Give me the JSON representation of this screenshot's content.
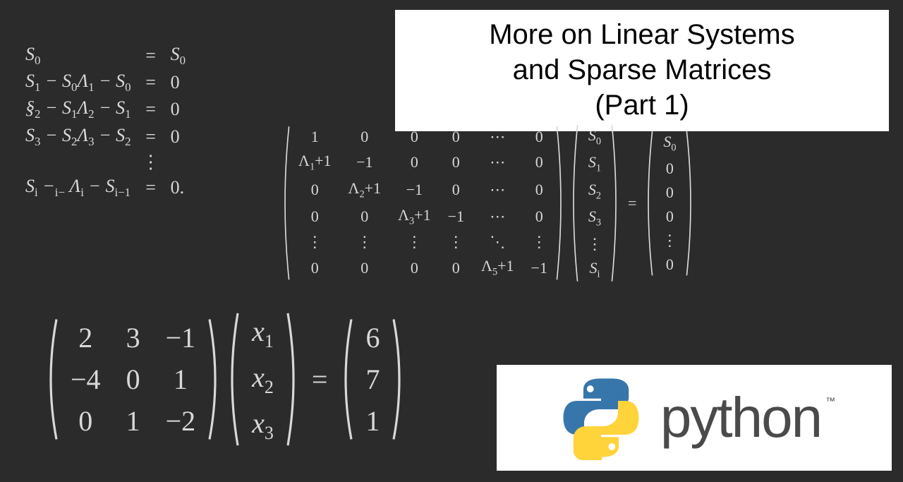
{
  "title": {
    "line1": "More on Linear Systems",
    "line2": "and Sparse Matrices",
    "line3": "(Part 1)",
    "bg": "#ffffff",
    "fg": "#000000",
    "fontsize": 40
  },
  "colors": {
    "page_bg": "#2b2b2b",
    "text": "#d8d8d8"
  },
  "eq_system": {
    "fontsize": 26,
    "rows": [
      {
        "lhs": "S₀",
        "rhs": "S₀"
      },
      {
        "lhs": "S₁ − S₀Λ₁ − S₀",
        "rhs": "0"
      },
      {
        "lhs": "§₂ − S₁Λ₂ − S₁",
        "rhs": "0"
      },
      {
        "lhs": "S₃ − S₂Λ₃ − S₂",
        "rhs": "0"
      },
      {
        "lhs": "⋮",
        "rhs": ""
      },
      {
        "lhs": "Sᵢ −ᵢ₋ Λᵢ − Sᵢ₋₁",
        "rhs": "0."
      }
    ]
  },
  "big_matrix": {
    "fontsize": 22,
    "A": [
      [
        "1",
        "0",
        "0",
        "0",
        "⋯",
        "0"
      ],
      [
        "Λ₁+1",
        "−1",
        "0",
        "0",
        "⋯",
        "0"
      ],
      [
        "0",
        "Λ₂+1",
        "−1",
        "0",
        "⋯",
        "0"
      ],
      [
        "0",
        "0",
        "Λ₃+1",
        "−1",
        "⋯",
        "0"
      ],
      [
        "⋮",
        "⋮",
        "⋮",
        "⋮",
        "⋱",
        "⋮"
      ],
      [
        "0",
        "0",
        "0",
        "0",
        "Λ₅+1",
        "−1"
      ]
    ],
    "x": [
      "S₀",
      "S₁",
      "S₂",
      "S₃",
      "⋮",
      "Sᵢ"
    ],
    "b": [
      "S₀",
      "0",
      "0",
      "0",
      "⋮",
      "0"
    ],
    "eq": "="
  },
  "small_matrix": {
    "fontsize": 40,
    "A": [
      [
        "2",
        "3",
        "−1"
      ],
      [
        "−4",
        "0",
        "1"
      ],
      [
        "0",
        "1",
        "−2"
      ]
    ],
    "x": [
      "x₁",
      "x₂",
      "x₃"
    ],
    "b": [
      "6",
      "7",
      "1"
    ],
    "eq": "="
  },
  "python": {
    "word": "python",
    "tm": "™",
    "logo_colors": {
      "top": "#3776ab",
      "bottom": "#ffd43b"
    },
    "bg": "#ffffff",
    "text_color": "#4a4a4a"
  }
}
